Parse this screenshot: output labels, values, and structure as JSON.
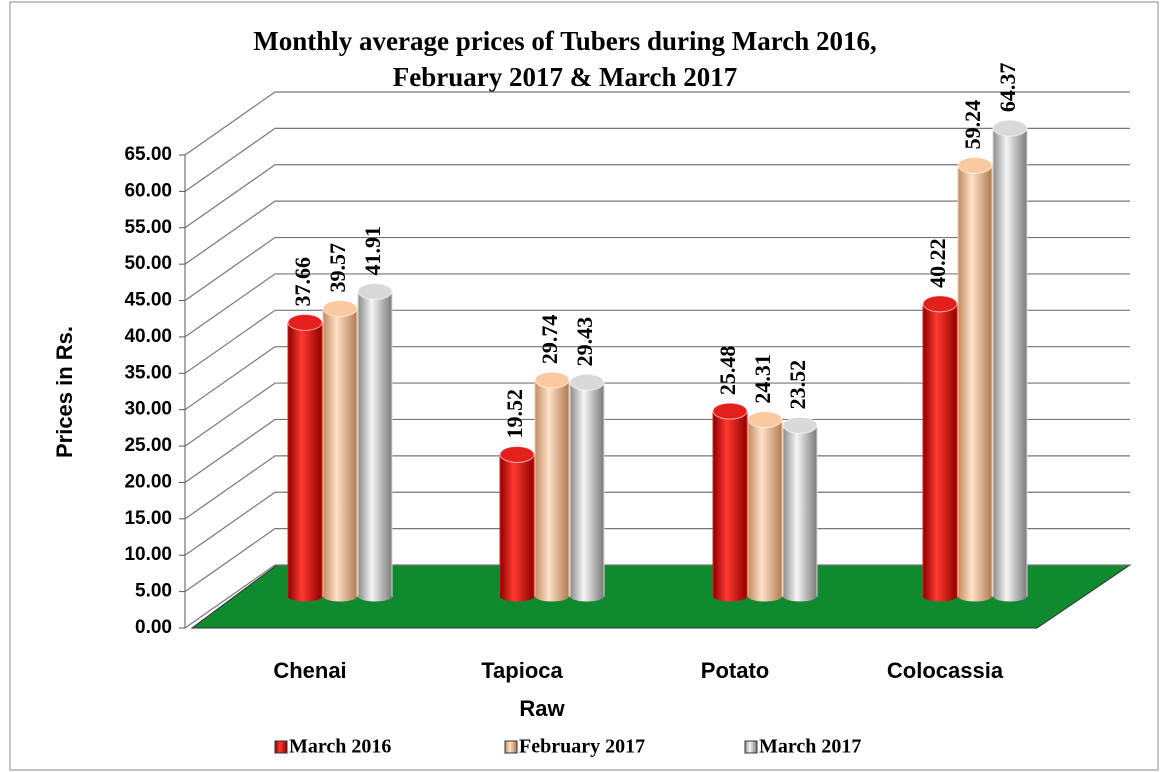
{
  "chart_data": {
    "type": "bar",
    "title": "Monthly average prices of Tubers during  March 2016,",
    "subtitle": "February 2017 & March 2017",
    "ylabel": "Prices in Rs.",
    "categories": [
      "Chenai",
      "Tapioca Raw",
      "Potato",
      "Colocassia"
    ],
    "series": [
      {
        "name": "March 2016",
        "color": "#e3201c",
        "values": [
          37.66,
          19.52,
          25.48,
          40.22
        ]
      },
      {
        "name": "February 2017",
        "color": "#f9caa0",
        "values": [
          39.57,
          29.74,
          24.31,
          59.24
        ]
      },
      {
        "name": "March 2017",
        "color": "#d9d9d9",
        "values": [
          41.91,
          29.43,
          23.52,
          64.37
        ]
      }
    ],
    "ylim": [
      0,
      65
    ],
    "yticks": [
      {
        "value": 0,
        "label": "0.00"
      },
      {
        "value": 5,
        "label": "5.00"
      },
      {
        "value": 10,
        "label": "10.00"
      },
      {
        "value": 15,
        "label": "15.00"
      },
      {
        "value": 20,
        "label": "20.00"
      },
      {
        "value": 25,
        "label": "25.00"
      },
      {
        "value": 30,
        "label": "30.00"
      },
      {
        "value": 35,
        "label": "35.00"
      },
      {
        "value": 40,
        "label": "40.00"
      },
      {
        "value": 45,
        "label": "45.00"
      },
      {
        "value": 50,
        "label": "50.00"
      },
      {
        "value": 55,
        "label": "55.00"
      },
      {
        "value": 60,
        "label": "60.00"
      },
      {
        "value": 65,
        "label": "65.00"
      }
    ],
    "grid": true,
    "legend": "bottom"
  }
}
